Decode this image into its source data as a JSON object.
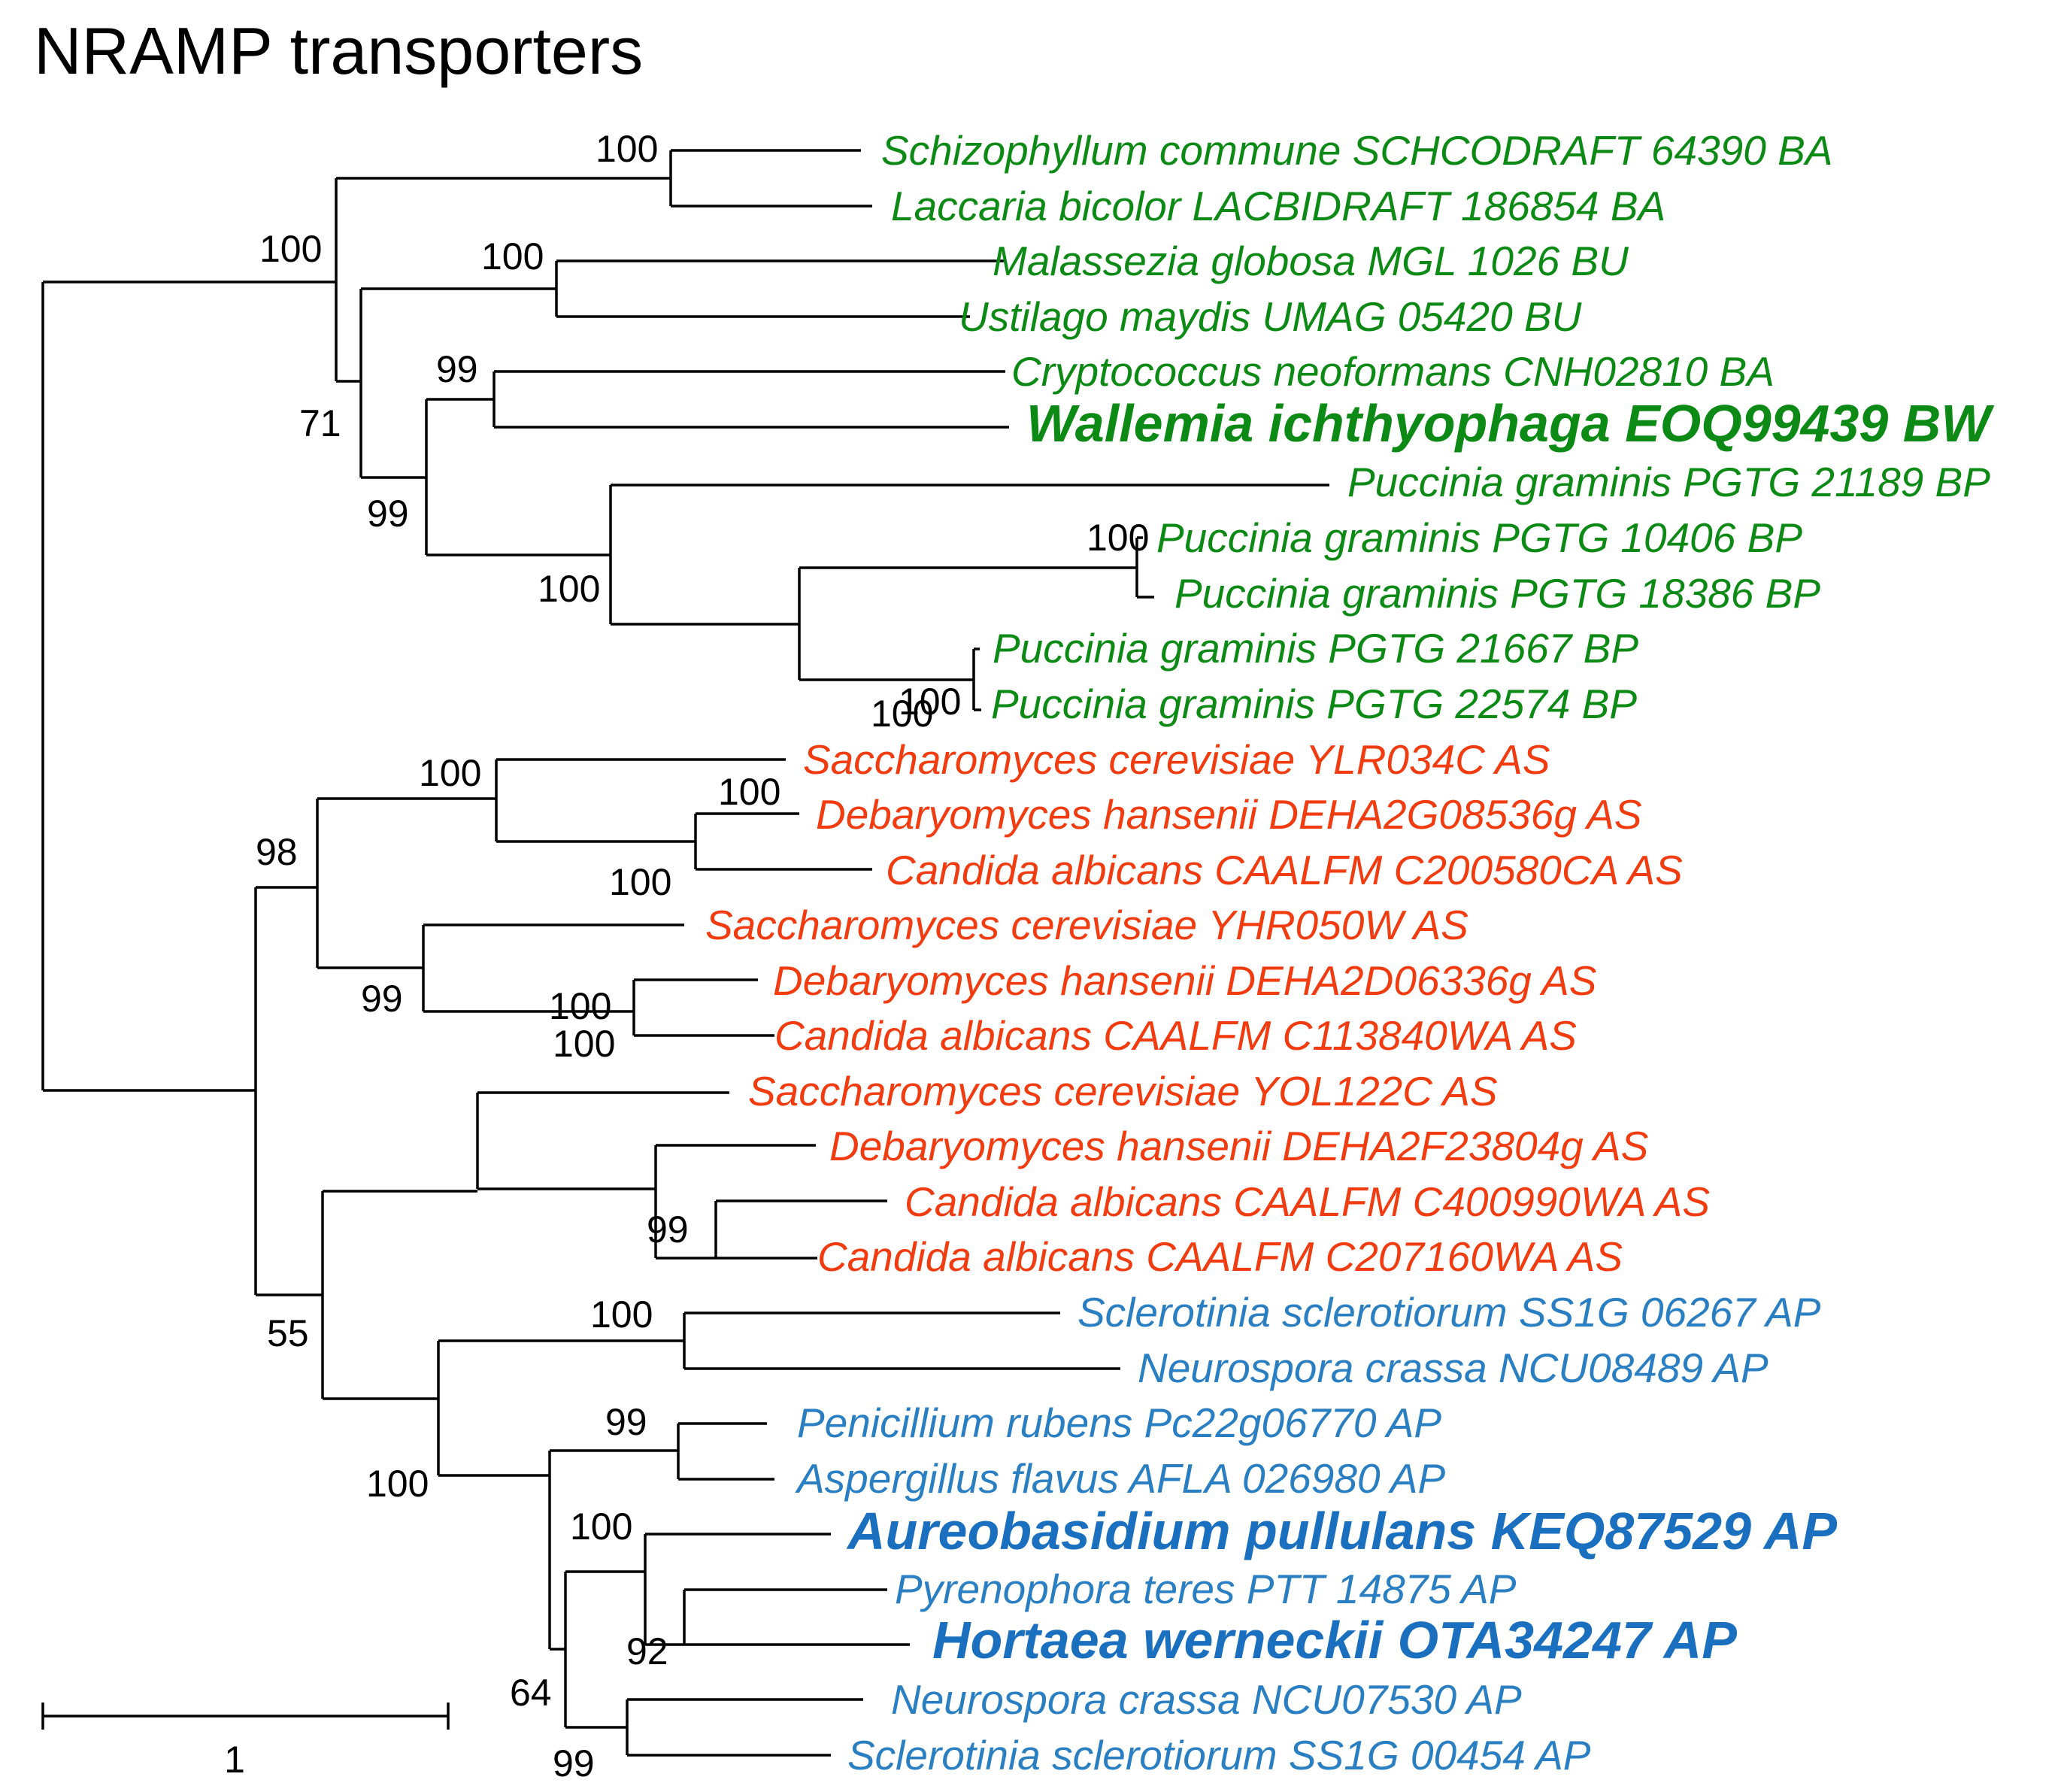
{
  "title": "NRAMP transporters",
  "colors": {
    "basidio": "#0d8a16",
    "saccharo": "#f03c10",
    "pezizo": "#2a7ec2",
    "pezizo_bold": "#1a6fbf"
  },
  "taxa": [
    {
      "label": "Schizophyllum commune SCHCODRAFT 64390 BA",
      "group": "basidio",
      "bold": false
    },
    {
      "label": "Laccaria bicolor LACBIDRAFT 186854 BA",
      "group": "basidio",
      "bold": false
    },
    {
      "label": "Malassezia globosa MGL 1026 BU",
      "group": "basidio",
      "bold": false
    },
    {
      "label": "Ustilago maydis UMAG 05420 BU",
      "group": "basidio",
      "bold": false
    },
    {
      "label": "Cryptococcus neoformans CNH02810 BA",
      "group": "basidio",
      "bold": false
    },
    {
      "label": "Wallemia ichthyophaga EOQ99439 BW",
      "group": "basidio",
      "bold": true
    },
    {
      "label": "Puccinia graminis PGTG 21189 BP",
      "group": "basidio",
      "bold": false
    },
    {
      "label": "Puccinia graminis PGTG 10406 BP",
      "group": "basidio",
      "bold": false
    },
    {
      "label": "Puccinia graminis PGTG 18386 BP",
      "group": "basidio",
      "bold": false
    },
    {
      "label": "Puccinia graminis PGTG 21667 BP",
      "group": "basidio",
      "bold": false
    },
    {
      "label": "Puccinia graminis PGTG 22574 BP",
      "group": "basidio",
      "bold": false
    },
    {
      "label": "Saccharomyces cerevisiae YLR034C AS",
      "group": "saccharo",
      "bold": false
    },
    {
      "label": "Debaryomyces hansenii DEHA2G08536g AS",
      "group": "saccharo",
      "bold": false
    },
    {
      "label": "Candida albicans CAALFM C200580CA AS",
      "group": "saccharo",
      "bold": false
    },
    {
      "label": "Saccharomyces cerevisiae YHR050W AS",
      "group": "saccharo",
      "bold": false
    },
    {
      "label": "Debaryomyces hansenii DEHA2D06336g AS",
      "group": "saccharo",
      "bold": false
    },
    {
      "label": "Candida albicans CAALFM C113840WA AS",
      "group": "saccharo",
      "bold": false
    },
    {
      "label": "Saccharomyces cerevisiae YOL122C AS",
      "group": "saccharo",
      "bold": false
    },
    {
      "label": "Debaryomyces hansenii DEHA2F23804g AS",
      "group": "saccharo",
      "bold": false
    },
    {
      "label": "Candida albicans CAALFM C400990WA AS",
      "group": "saccharo",
      "bold": false
    },
    {
      "label": "Candida albicans CAALFM C207160WA AS",
      "group": "saccharo",
      "bold": false
    },
    {
      "label": "Sclerotinia sclerotiorum SS1G 06267 AP",
      "group": "pezizo",
      "bold": false
    },
    {
      "label": "Neurospora crassa NCU08489 AP",
      "group": "pezizo",
      "bold": false
    },
    {
      "label": "Penicillium rubens Pc22g06770 AP",
      "group": "pezizo",
      "bold": false
    },
    {
      "label": "Aspergillus flavus AFLA 026980 AP",
      "group": "pezizo",
      "bold": false
    },
    {
      "label": "Aureobasidium pullulans KEQ87529 AP",
      "group": "pezizo",
      "bold": true
    },
    {
      "label": "Pyrenophora teres PTT 14875 AP",
      "group": "pezizo",
      "bold": false
    },
    {
      "label": "Hortaea werneckii OTA34247 AP",
      "group": "pezizo",
      "bold": true
    },
    {
      "label": "Neurospora crassa NCU07530 AP",
      "group": "pezizo",
      "bold": false
    },
    {
      "label": "Sclerotinia sclerotiorum SS1G 00454 AP",
      "group": "pezizo",
      "bold": false
    }
  ],
  "supports": [
    "100",
    "100",
    "100",
    "99",
    "71",
    "99",
    "100",
    "100",
    "100",
    "100",
    "100",
    "98",
    "100",
    "99",
    "100",
    "100",
    "100",
    "99",
    "55",
    "100",
    "100",
    "99",
    "100",
    "92",
    "64",
    "99"
  ],
  "scale_bar": {
    "label": "1"
  }
}
